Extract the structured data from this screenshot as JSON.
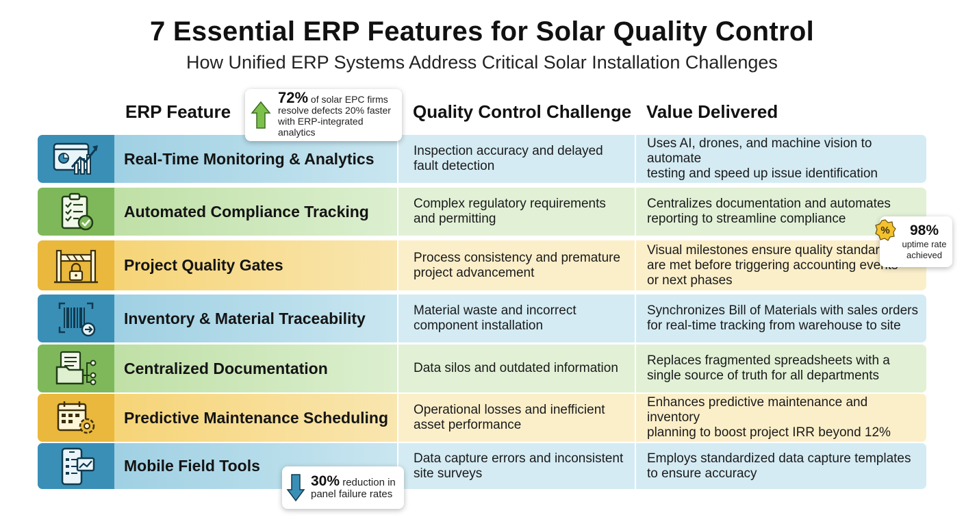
{
  "header": {
    "title": "7 Essential ERP Features for Solar Quality Control",
    "subtitle": "How Unified ERP Systems Address Critical Solar Installation Challenges"
  },
  "columns": {
    "feature": "ERP Feature",
    "challenge": "Quality Control Challenge",
    "value": "Value Delivered"
  },
  "rows": [
    {
      "icon": "analytics-dashboard-icon",
      "feature": "Real-Time Monitoring & Analytics",
      "challenge": "Inspection accuracy and delayed\nfault detection",
      "value": "Uses AI, drones, and machine vision to automate\ntesting and speed up issue identification",
      "color": "blue"
    },
    {
      "icon": "compliance-checklist-icon",
      "feature": "Automated Compliance Tracking",
      "challenge": "Complex regulatory requirements\nand permitting",
      "value": "Centralizes documentation and automates\nreporting to streamline compliance",
      "color": "green"
    },
    {
      "icon": "quality-gate-lock-icon",
      "feature": "Project Quality Gates",
      "challenge": "Process consistency and premature\nproject advancement",
      "value": "Visual milestones ensure quality standards\nare met before triggering accounting events\nor next phases",
      "color": "yellow"
    },
    {
      "icon": "barcode-scan-icon",
      "feature": "Inventory & Material Traceability",
      "challenge": "Material waste and incorrect\ncomponent installation",
      "value": "Synchronizes Bill of Materials with sales orders\nfor real-time tracking from warehouse to site",
      "color": "blue"
    },
    {
      "icon": "document-folder-network-icon",
      "feature": "Centralized Documentation",
      "challenge": "Data silos and outdated information",
      "value": "Replaces fragmented spreadsheets with a\nsingle source of truth for all departments",
      "color": "green"
    },
    {
      "icon": "calendar-gear-icon",
      "feature": "Predictive Maintenance Scheduling",
      "challenge": "Operational losses and inefficient\nasset performance",
      "value": "Enhances predictive maintenance and inventory\nplanning to boost project IRR beyond 12%",
      "color": "yellow"
    },
    {
      "icon": "mobile-device-chart-icon",
      "feature": "Mobile Field Tools",
      "challenge": "Data capture errors and inconsistent\nsite surveys",
      "value": "Employs standardized data capture templates\nto ensure accuracy",
      "color": "blue"
    }
  ],
  "callouts": {
    "defects": {
      "stat": "72%",
      "text_a": " of solar EPC firms",
      "text_b": "resolve defects 20% faster",
      "text_c": "with ERP-integrated analytics",
      "icon": "arrow-up-icon",
      "color": "#7cc04b"
    },
    "uptime": {
      "stat": "98%",
      "text_a": "uptime rate",
      "text_b": "achieved",
      "icon": "percent-badge-icon",
      "color": "#f2c12e"
    },
    "failure": {
      "stat": "30%",
      "text_a": " reduction in",
      "text_b": "panel failure rates",
      "icon": "arrow-down-icon",
      "color": "#3a8fb6"
    }
  },
  "colors": {
    "blue": "#3a8fb6",
    "green": "#7fb85a",
    "yellow": "#e9b83c"
  }
}
